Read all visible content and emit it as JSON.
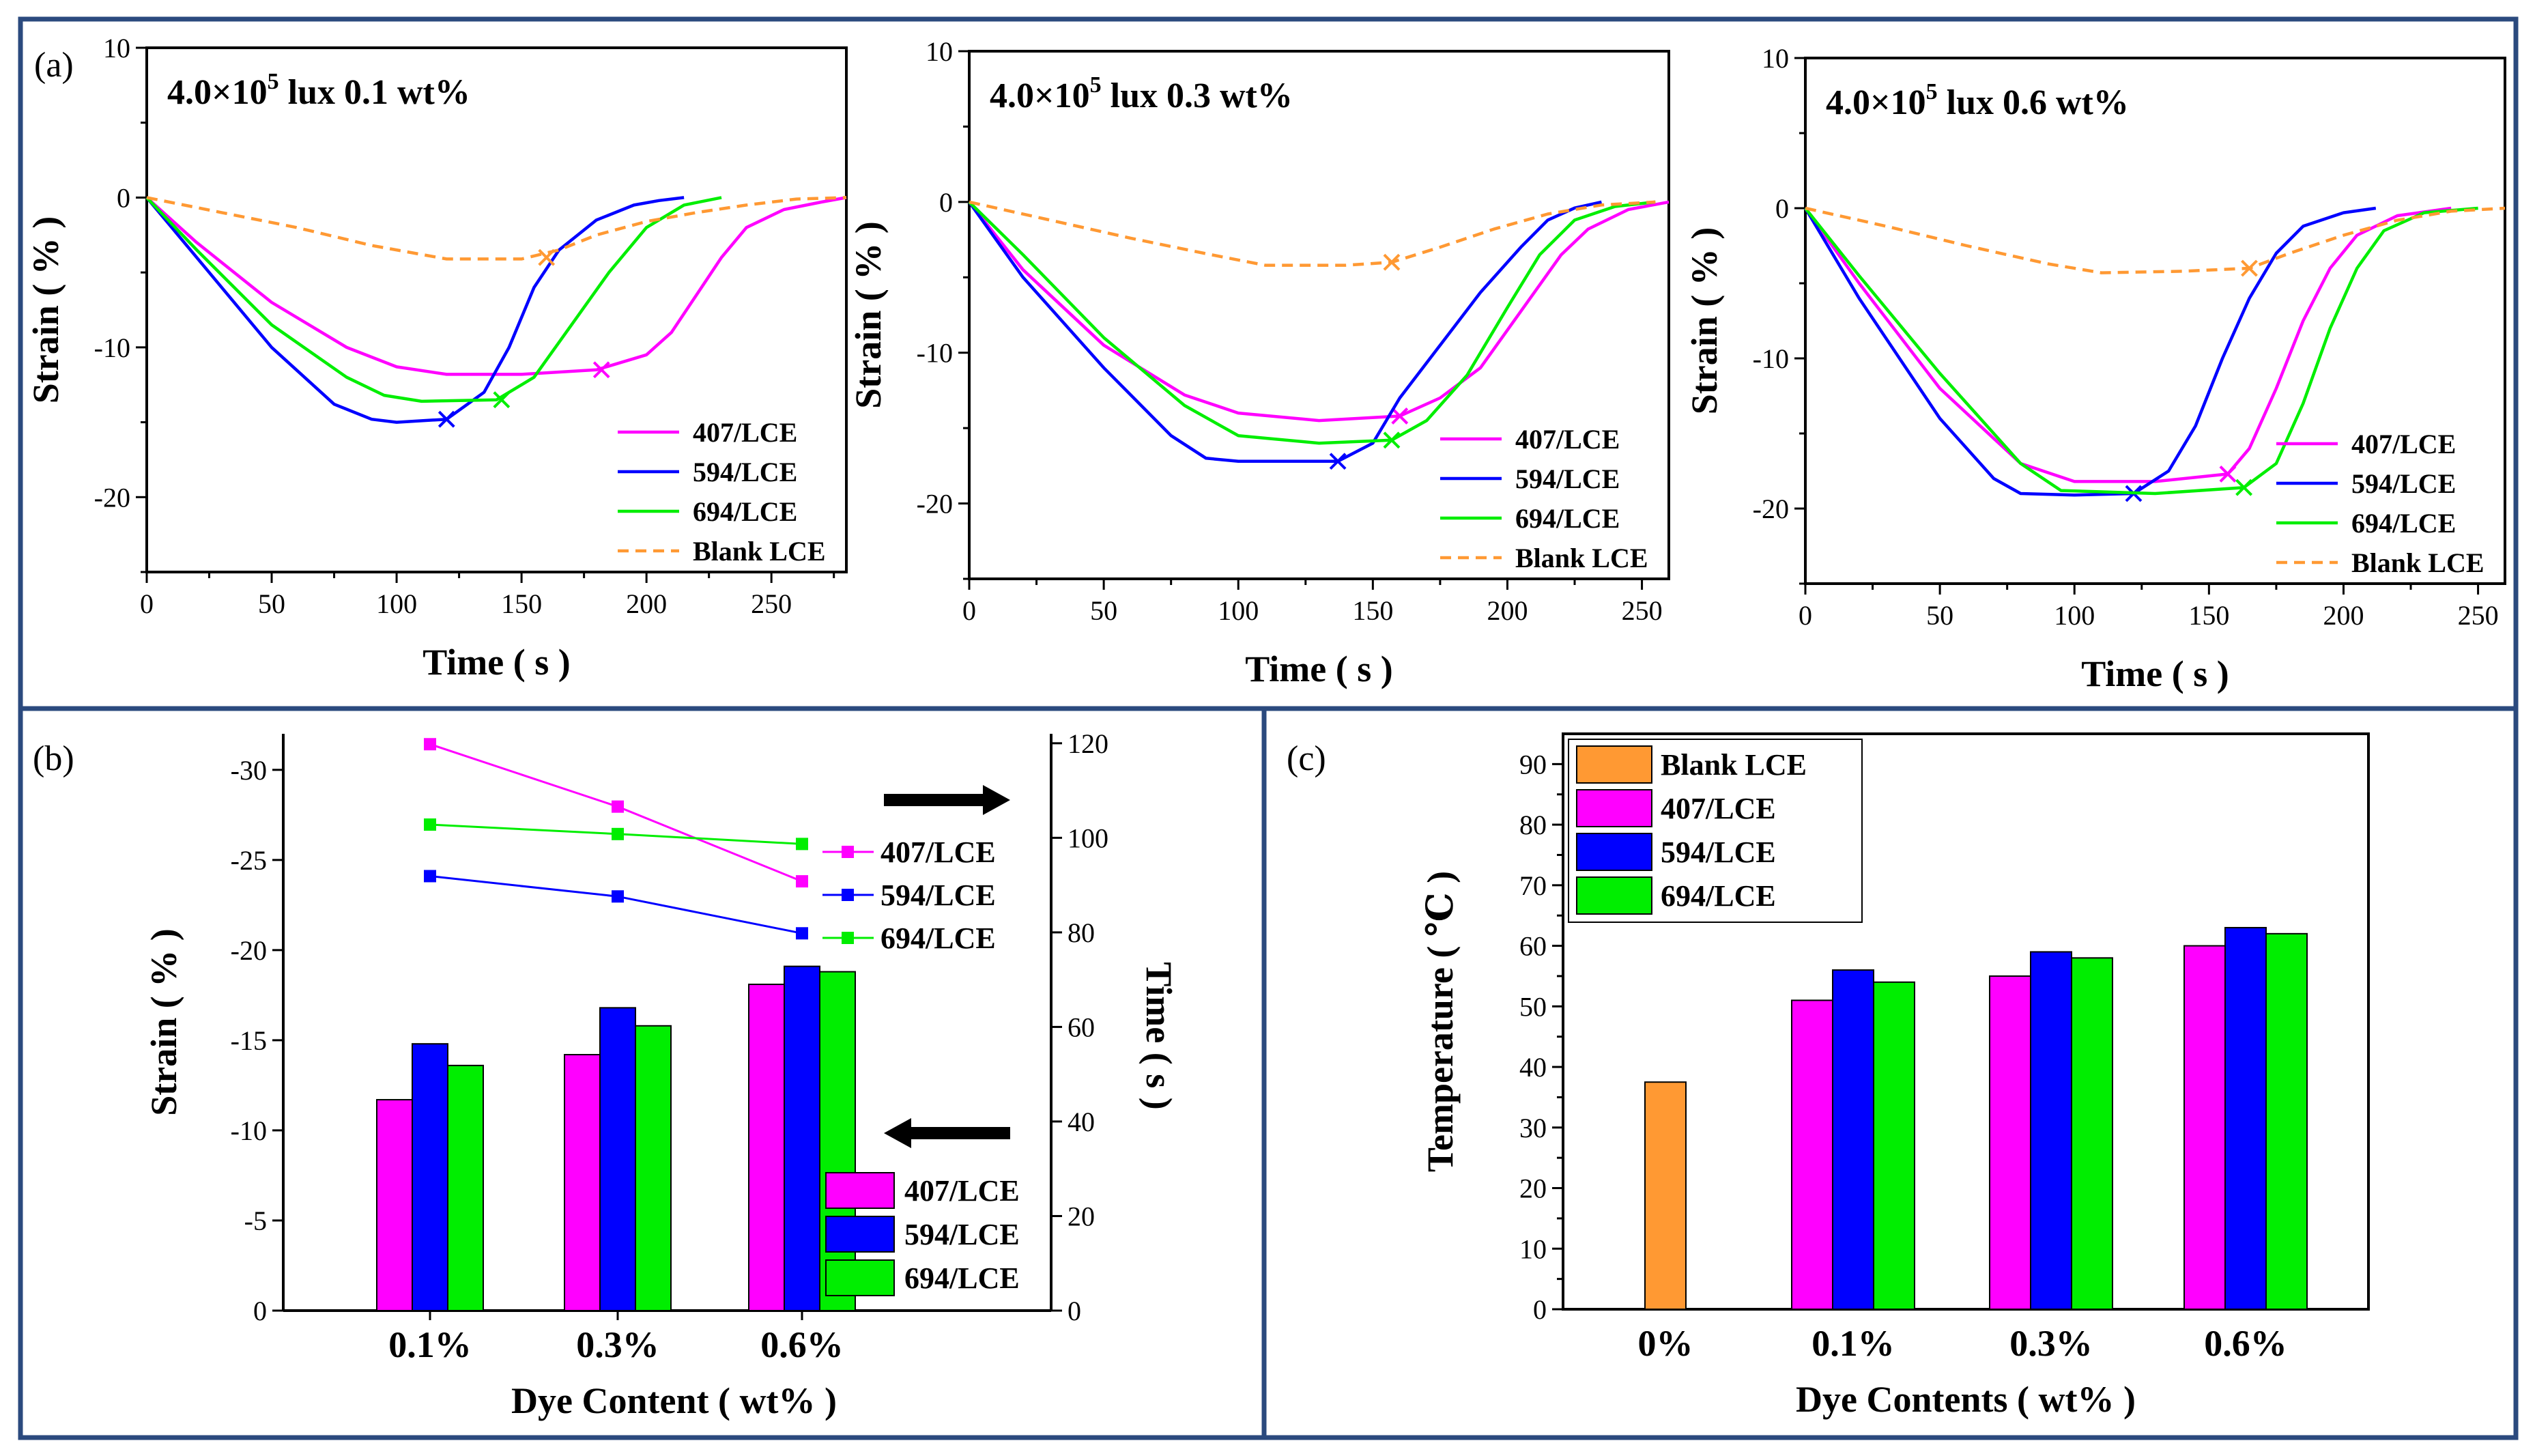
{
  "panel_labels": {
    "a": "(a)",
    "b": "(b)",
    "c": "(c)"
  },
  "colors": {
    "m407": "#ff00ff",
    "m594": "#0000ff",
    "m694": "#00ee00",
    "blank": "#ff9933",
    "frame": "#2b4a7e"
  },
  "chart_data": [
    {
      "type": "line",
      "panel": "(a)",
      "condition_main": "4.0×10",
      "condition_exp": "5",
      "condition_rest": " lux  0.1 wt%",
      "xlabel": "Time ( s )",
      "ylabel": "Strain ( % )",
      "xlim": [
        0,
        280
      ],
      "ylim": [
        -25,
        10
      ],
      "xticks": [
        0,
        50,
        100,
        150,
        200,
        250
      ],
      "yticks": [
        -20,
        -10,
        0,
        10
      ],
      "legend_position": "bottom-right",
      "series": [
        {
          "name": "407/LCE",
          "style": "solid",
          "color_key": "m407",
          "marker": [
            182,
            -11.5
          ],
          "x": [
            0,
            20,
            50,
            80,
            100,
            120,
            150,
            180,
            200,
            210,
            220,
            230,
            240,
            255,
            270,
            280
          ],
          "y": [
            0,
            -3,
            -7,
            -10,
            -11.3,
            -11.8,
            -11.8,
            -11.5,
            -10.5,
            -9,
            -6.5,
            -4,
            -2,
            -0.8,
            -0.3,
            0
          ]
        },
        {
          "name": "594/LCE",
          "style": "solid",
          "color_key": "m594",
          "marker": [
            120,
            -14.8
          ],
          "x": [
            0,
            20,
            50,
            75,
            90,
            100,
            120,
            135,
            145,
            155,
            165,
            180,
            195,
            205,
            215
          ],
          "y": [
            0,
            -4,
            -10,
            -13.8,
            -14.8,
            -15,
            -14.8,
            -13,
            -10,
            -6,
            -3.5,
            -1.5,
            -0.5,
            -0.2,
            0
          ]
        },
        {
          "name": "694/LCE",
          "style": "solid",
          "color_key": "m694",
          "marker": [
            142,
            -13.5
          ],
          "x": [
            0,
            20,
            50,
            80,
            95,
            110,
            140,
            155,
            170,
            185,
            200,
            215,
            230
          ],
          "y": [
            0,
            -3.5,
            -8.5,
            -12,
            -13.2,
            -13.6,
            -13.5,
            -12,
            -8.5,
            -5,
            -2,
            -0.5,
            0
          ]
        },
        {
          "name": "Blank LCE",
          "style": "dashed",
          "color_key": "blank",
          "marker": [
            160,
            -4
          ],
          "x": [
            0,
            30,
            60,
            90,
            120,
            150,
            165,
            180,
            200,
            220,
            240,
            260,
            280
          ],
          "y": [
            0,
            -1,
            -2,
            -3.2,
            -4.1,
            -4.1,
            -3.5,
            -2.5,
            -1.6,
            -1,
            -0.5,
            -0.1,
            0
          ]
        }
      ]
    },
    {
      "type": "line",
      "panel": "(a)",
      "condition_main": "4.0×10",
      "condition_exp": "5",
      "condition_rest": " lux  0.3 wt%",
      "xlabel": "Time ( s )",
      "ylabel": "Strain ( % )",
      "xlim": [
        0,
        260
      ],
      "ylim": [
        -25,
        10
      ],
      "xticks": [
        0,
        50,
        100,
        150,
        200,
        250
      ],
      "yticks": [
        -20,
        -10,
        0,
        10
      ],
      "legend_position": "bottom-right",
      "series": [
        {
          "name": "407/LCE",
          "style": "solid",
          "color_key": "m407",
          "marker": [
            160,
            -14.2
          ],
          "x": [
            0,
            20,
            50,
            80,
            100,
            130,
            160,
            175,
            190,
            200,
            210,
            220,
            230,
            245,
            260
          ],
          "y": [
            0,
            -4.5,
            -9.5,
            -12.8,
            -14,
            -14.5,
            -14.2,
            -13,
            -11,
            -8.5,
            -6,
            -3.5,
            -1.8,
            -0.5,
            0
          ]
        },
        {
          "name": "594/LCE",
          "style": "solid",
          "color_key": "m594",
          "marker": [
            137,
            -17.2
          ],
          "x": [
            0,
            20,
            50,
            75,
            88,
            100,
            137,
            150,
            160,
            175,
            190,
            205,
            215,
            225,
            235
          ],
          "y": [
            0,
            -5,
            -11,
            -15.5,
            -17,
            -17.2,
            -17.2,
            -16,
            -13,
            -9.5,
            -6,
            -3,
            -1.2,
            -0.4,
            0
          ]
        },
        {
          "name": "694/LCE",
          "style": "solid",
          "color_key": "m694",
          "marker": [
            157,
            -15.8
          ],
          "x": [
            0,
            20,
            50,
            80,
            100,
            130,
            157,
            170,
            185,
            200,
            212,
            225,
            240,
            255
          ],
          "y": [
            0,
            -3.5,
            -9,
            -13.5,
            -15.5,
            -16,
            -15.8,
            -14.5,
            -11.5,
            -7,
            -3.5,
            -1.2,
            -0.3,
            0
          ]
        },
        {
          "name": "Blank LCE",
          "style": "dashed",
          "color_key": "blank",
          "marker": [
            157,
            -4
          ],
          "x": [
            0,
            30,
            60,
            90,
            110,
            140,
            157,
            175,
            195,
            215,
            235,
            255
          ],
          "y": [
            0,
            -1.2,
            -2.4,
            -3.5,
            -4.2,
            -4.2,
            -4,
            -3,
            -1.8,
            -0.8,
            -0.2,
            0
          ]
        }
      ]
    },
    {
      "type": "line",
      "panel": "(a)",
      "condition_main": "4.0×10",
      "condition_exp": "5",
      "condition_rest": " lux  0.6 wt%",
      "xlabel": "Time ( s )",
      "ylabel": "Strain ( % )",
      "xlim": [
        0,
        260
      ],
      "ylim": [
        -25,
        10
      ],
      "xticks": [
        0,
        50,
        100,
        150,
        200,
        250
      ],
      "yticks": [
        -20,
        -10,
        0,
        10
      ],
      "legend_position": "bottom-right",
      "series": [
        {
          "name": "407/LCE",
          "style": "solid",
          "color_key": "m407",
          "marker": [
            157,
            -17.7
          ],
          "x": [
            0,
            20,
            50,
            80,
            100,
            130,
            157,
            165,
            175,
            185,
            195,
            205,
            220,
            240
          ],
          "y": [
            0,
            -5,
            -12,
            -17,
            -18.2,
            -18.2,
            -17.7,
            -16,
            -12,
            -7.5,
            -4,
            -1.8,
            -0.5,
            0
          ]
        },
        {
          "name": "594/LCE",
          "style": "solid",
          "color_key": "m594",
          "marker": [
            122,
            -19
          ],
          "x": [
            0,
            20,
            50,
            70,
            80,
            100,
            122,
            135,
            145,
            155,
            165,
            175,
            185,
            200,
            212
          ],
          "y": [
            0,
            -6,
            -14,
            -18,
            -19,
            -19.1,
            -19,
            -17.5,
            -14.5,
            -10,
            -6,
            -3,
            -1.2,
            -0.3,
            0
          ]
        },
        {
          "name": "694/LCE",
          "style": "solid",
          "color_key": "m694",
          "marker": [
            163,
            -18.6
          ],
          "x": [
            0,
            20,
            50,
            80,
            95,
            130,
            163,
            175,
            185,
            195,
            205,
            215,
            230,
            250
          ],
          "y": [
            0,
            -4.5,
            -11,
            -17,
            -18.8,
            -19,
            -18.6,
            -17,
            -13,
            -8,
            -4,
            -1.5,
            -0.3,
            0
          ]
        },
        {
          "name": "Blank LCE",
          "style": "dashed",
          "color_key": "blank",
          "marker": [
            165,
            -4
          ],
          "x": [
            0,
            30,
            60,
            90,
            110,
            140,
            165,
            180,
            200,
            220,
            240,
            260
          ],
          "y": [
            0,
            -1.2,
            -2.5,
            -3.7,
            -4.3,
            -4.2,
            -4,
            -3,
            -1.8,
            -0.8,
            -0.2,
            0
          ]
        }
      ]
    },
    {
      "type": "bar",
      "panel": "(b)",
      "xlabel": "Dye Content ( wt% )",
      "ylabel": "Strain ( % )",
      "y2label": "Time ( s )",
      "categories": [
        "0.1%",
        "0.3%",
        "0.6%"
      ],
      "ylim": [
        0,
        -32
      ],
      "yticks": [
        0,
        -5,
        -10,
        -15,
        -20,
        -25,
        -30
      ],
      "y2lim": [
        0,
        122
      ],
      "y2ticks": [
        0,
        20,
        40,
        60,
        80,
        100,
        120
      ],
      "legend_position": "bottom-right",
      "bar_series": [
        {
          "name": "407/LCE",
          "color_key": "m407",
          "values": [
            -11.7,
            -14.2,
            -18.1
          ]
        },
        {
          "name": "594/LCE",
          "color_key": "m594",
          "values": [
            -14.8,
            -16.8,
            -19.1
          ]
        },
        {
          "name": "694/LCE",
          "color_key": "m694",
          "values": [
            -13.6,
            -15.8,
            -18.8
          ]
        }
      ],
      "line_series": [
        {
          "name": "407/LCE",
          "color_key": "m407",
          "values": [
            119.8,
            106.6,
            90.8
          ]
        },
        {
          "name": "594/LCE",
          "color_key": "m594",
          "values": [
            91.9,
            87.6,
            79.8
          ]
        },
        {
          "name": "694/LCE",
          "color_key": "m694",
          "values": [
            102.8,
            100.8,
            98.7
          ]
        }
      ]
    },
    {
      "type": "bar",
      "panel": "(c)",
      "xlabel": "Dye Contents ( wt% )",
      "ylabel": "Temperature ( ℃ )",
      "categories": [
        "0%",
        "0.1%",
        "0.3%",
        "0.6%"
      ],
      "ylim": [
        0,
        95
      ],
      "yticks": [
        0,
        10,
        20,
        30,
        40,
        50,
        60,
        70,
        80,
        90
      ],
      "legend_position": "top-left",
      "series": [
        {
          "name": "Blank LCE",
          "color_key": "blank",
          "values": [
            37.5,
            null,
            null,
            null
          ]
        },
        {
          "name": "407/LCE",
          "color_key": "m407",
          "values": [
            null,
            51,
            55,
            60
          ]
        },
        {
          "name": "594/LCE",
          "color_key": "m594",
          "values": [
            null,
            56,
            59,
            63
          ]
        },
        {
          "name": "694/LCE",
          "color_key": "m694",
          "values": [
            null,
            54,
            58,
            62
          ]
        }
      ]
    }
  ]
}
